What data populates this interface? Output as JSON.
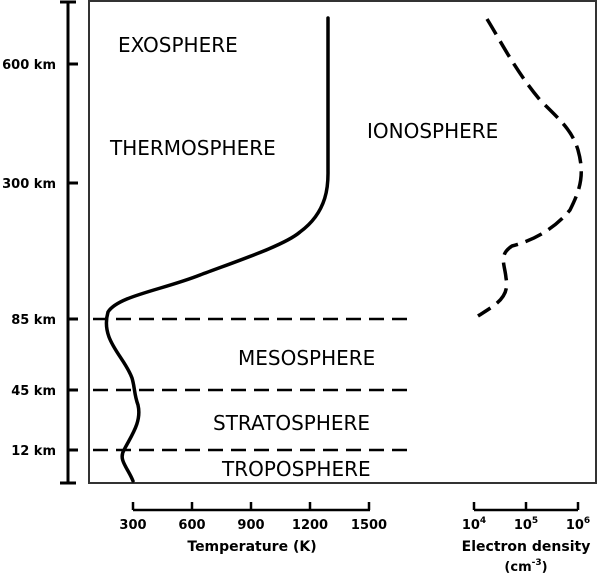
{
  "layers": {
    "exosphere": "EXOSPHERE",
    "thermosphere": "THERMOSPHERE",
    "ionosphere": "IONOSPHERE",
    "mesosphere": "MESOSPHERE",
    "stratosphere": "STRATOSPHERE",
    "troposphere": "TROPOSPHERE"
  },
  "altitudes": [
    "600 km",
    "300 km",
    "85 km",
    "45 km",
    "12 km"
  ],
  "temperature_axis": {
    "ticks": [
      "300",
      "600",
      "900",
      "1200",
      "1500"
    ],
    "title": "Temperature (K)"
  },
  "density_axis": {
    "ticks": [
      {
        "base": "10",
        "exp": "4"
      },
      {
        "base": "10",
        "exp": "5"
      },
      {
        "base": "10",
        "exp": "6"
      }
    ],
    "title": "Electron density",
    "unit_base": "(cm",
    "unit_exp": "-3",
    "unit_close": ")"
  },
  "colors": {
    "line": "#000000",
    "frame": "#333333"
  }
}
